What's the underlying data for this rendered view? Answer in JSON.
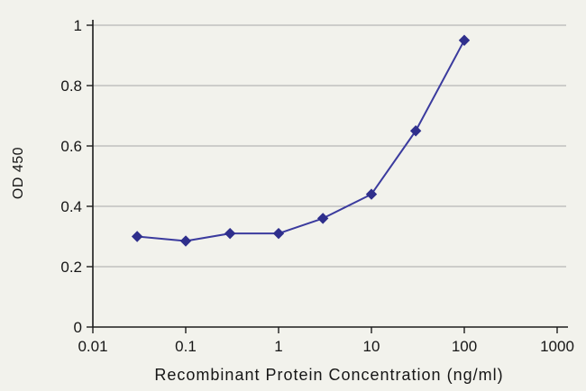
{
  "chart_data": {
    "type": "line",
    "title": "",
    "xlabel": "Recombinant Protein Concentration (ng/ml)",
    "ylabel": "OD 450",
    "xscale": "log",
    "xlim": [
      0.01,
      1000
    ],
    "ylim": [
      0,
      1
    ],
    "x": [
      0.03,
      0.1,
      0.3,
      1,
      3,
      10,
      30,
      100
    ],
    "y": [
      0.3,
      0.285,
      0.31,
      0.31,
      0.36,
      0.44,
      0.65,
      0.95
    ],
    "x_ticks": {
      "values": [
        0.01,
        0.1,
        1,
        10,
        100,
        1000
      ],
      "labels": [
        "0.01",
        "0.1",
        "1",
        "10",
        "100",
        "1000"
      ]
    },
    "y_ticks": {
      "values": [
        0,
        0.2,
        0.4,
        0.6,
        0.8,
        1
      ],
      "labels": [
        "0",
        "0.2",
        "0.4",
        "0.6",
        "0.8",
        "1"
      ]
    },
    "grid": "horizontal-only",
    "legend": "none",
    "marker": "diamond",
    "colors": {
      "line": "#3b3b9e",
      "marker": "#2f2f8c",
      "grid": "#a8a8a8",
      "axis": "#1c1c1c",
      "text": "#161616",
      "background": "#f2f2ec"
    }
  }
}
